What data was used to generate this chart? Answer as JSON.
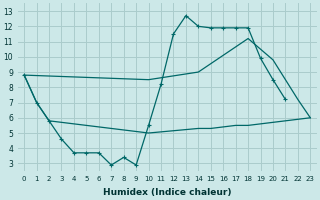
{
  "xlabel": "Humidex (Indice chaleur)",
  "background_color": "#cce8e8",
  "grid_color": "#aacccc",
  "line_color": "#006868",
  "xlim": [
    -0.5,
    23.5
  ],
  "ylim": [
    2.5,
    13.5
  ],
  "xticks": [
    0,
    1,
    2,
    3,
    4,
    5,
    6,
    7,
    8,
    9,
    10,
    11,
    12,
    13,
    14,
    15,
    16,
    17,
    18,
    19,
    20,
    21,
    22,
    23
  ],
  "yticks": [
    3,
    4,
    5,
    6,
    7,
    8,
    9,
    10,
    11,
    12,
    13
  ],
  "curve1_x": [
    0,
    1,
    2,
    3,
    4,
    5,
    6,
    7,
    8,
    9,
    10,
    11,
    12,
    13,
    14,
    15,
    16,
    17,
    18,
    19,
    20,
    21
  ],
  "curve1_y": [
    8.8,
    7.0,
    5.8,
    4.6,
    3.7,
    3.7,
    3.7,
    2.9,
    3.4,
    2.9,
    5.5,
    8.2,
    11.5,
    12.7,
    12.0,
    11.9,
    11.9,
    11.9,
    11.9,
    9.9,
    8.5,
    7.2
  ],
  "curve2_x": [
    0,
    1,
    2,
    10,
    14,
    15,
    16,
    17,
    18,
    19,
    20,
    21,
    22,
    23
  ],
  "curve2_y": [
    8.8,
    7.0,
    5.8,
    5.0,
    5.3,
    5.3,
    5.4,
    5.5,
    5.5,
    5.6,
    5.7,
    5.8,
    5.9,
    6.0
  ],
  "curve3_x": [
    0,
    10,
    14,
    18,
    20,
    21,
    22,
    23
  ],
  "curve3_y": [
    8.8,
    8.5,
    9.0,
    11.2,
    9.8,
    8.5,
    7.2,
    6.0
  ],
  "xlabel_fontsize": 6.5,
  "tick_fontsize_x": 5,
  "tick_fontsize_y": 5.5
}
